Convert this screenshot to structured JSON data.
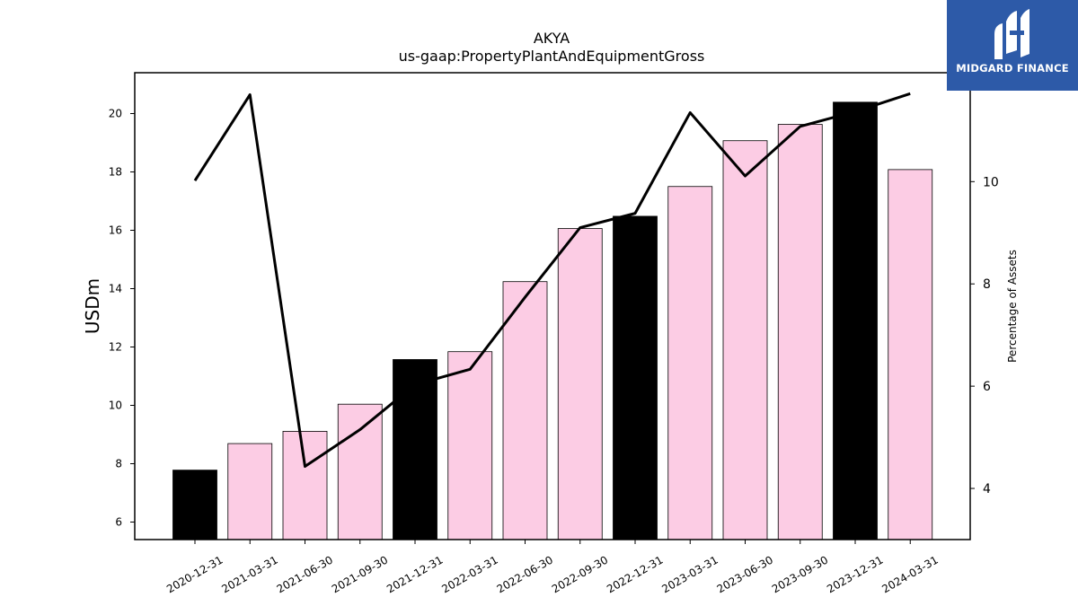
{
  "chart_data": {
    "type": "bar+line",
    "title": "AKYA",
    "subtitle": "us-gaap:PropertyPlantAndEquipmentGross",
    "ylabel": "USDm",
    "y2label": "Percentage of Assets",
    "categories": [
      "2020-12-31",
      "2021-03-31",
      "2021-06-30",
      "2021-09-30",
      "2021-12-31",
      "2022-03-31",
      "2022-06-30",
      "2022-09-30",
      "2022-12-31",
      "2023-03-31",
      "2023-06-30",
      "2023-09-30",
      "2023-12-31",
      "2024-03-31"
    ],
    "bars": {
      "unit": "USDm",
      "values": [
        7.78,
        8.69,
        9.11,
        10.04,
        11.57,
        11.84,
        14.24,
        16.06,
        16.48,
        17.5,
        19.07,
        19.63,
        20.39,
        18.08
      ],
      "colors": [
        "#000000",
        "#fccce4",
        "#fccce4",
        "#fccce4",
        "#000000",
        "#fccce4",
        "#fccce4",
        "#fccce4",
        "#000000",
        "#fccce4",
        "#fccce4",
        "#fccce4",
        "#000000",
        "#fccce4"
      ]
    },
    "line": {
      "unit": "Percentage of Assets",
      "values": [
        10.02,
        11.7,
        4.43,
        5.15,
        6.03,
        6.33,
        7.74,
        9.1,
        9.38,
        11.35,
        10.11,
        11.08,
        11.37,
        11.72
      ],
      "color": "#000000"
    },
    "yticks": [
      6,
      8,
      10,
      12,
      14,
      16,
      18,
      20
    ],
    "ylim": [
      5.4,
      21.4
    ],
    "y2ticks": [
      4,
      6,
      8,
      10
    ],
    "y2lim": [
      3.0,
      12.13
    ],
    "grid": false,
    "legend": "none"
  },
  "logo": {
    "name": "MIDGARD FINANCE",
    "bg_color": "#2d5aa8"
  }
}
